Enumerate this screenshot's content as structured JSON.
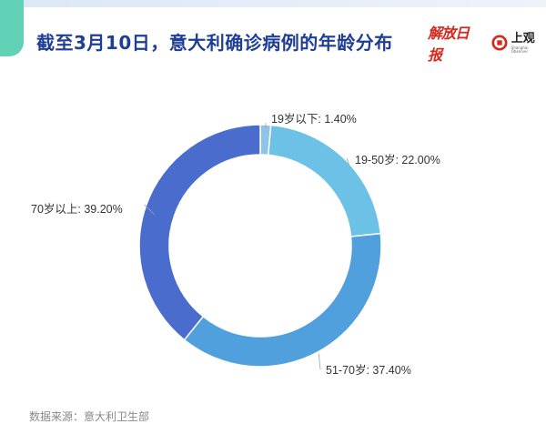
{
  "header": {
    "title": "截至3月10日，意大利确诊病例的年龄分布",
    "logo_jiefang": "解放日报",
    "logo_shangguan_cn": "上观",
    "logo_shangguan_en": "Shanghai Observer"
  },
  "footer": {
    "source": "数据来源：意大利卫生部"
  },
  "colors": {
    "title": "#1f3f96",
    "slices": [
      "#8fc4e8",
      "#6cc2e6",
      "#4fa0dd",
      "#4a6ccc"
    ],
    "accent": "#62d2b6"
  },
  "chart_data": {
    "type": "pie",
    "variant": "donut",
    "title": "截至3月10日，意大利确诊病例的年龄分布",
    "categories": [
      "19岁以下",
      "19-50岁",
      "51-70岁",
      "70岁以上"
    ],
    "values": [
      1.4,
      22.0,
      37.4,
      39.2
    ],
    "labels": [
      "19岁以下: 1.40%",
      "19-50岁: 22.00%",
      "51-70岁: 37.40%",
      "70岁以上: 39.20%"
    ],
    "unit": "%",
    "start_angle": "12 o'clock",
    "direction": "clockwise",
    "legend": "none"
  }
}
